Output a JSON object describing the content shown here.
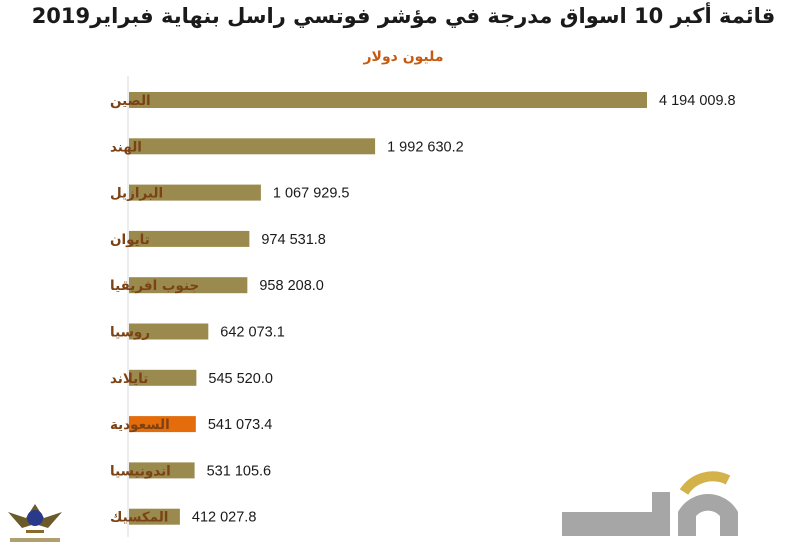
{
  "title": "قائمة أكبر 10 اسواق مدرجة في مؤشر فوتسي راسل بنهاية فبراير2019",
  "subtitle": "مليون دولار",
  "colors": {
    "bar": "#9a8a4e",
    "highlight": "#e46c0a",
    "label": "#7b4215",
    "subtitle": "#c55a11",
    "axis": "#d9d9d9"
  },
  "chart_data": {
    "type": "bar",
    "orientation": "horizontal",
    "title": "قائمة أكبر 10 اسواق مدرجة في مؤشر فوتسي راسل بنهاية فبراير2019",
    "subtitle": "مليون دولار",
    "categories": [
      "الصين",
      "الهند",
      "البرازيل",
      "تايوان",
      "جنوب افريقيا",
      "روسيا",
      "تايلاند",
      "السعودية",
      "اندونيسيا",
      "المكسيك"
    ],
    "values": [
      4194009.8,
      1992630.2,
      1067929.5,
      974531.8,
      958208.0,
      642073.1,
      545520.0,
      541073.4,
      531105.6,
      412027.8
    ],
    "value_labels": [
      "4 194 009.8",
      "1 992 630.2",
      "1 067 929.5",
      "974 531.8",
      "958 208.0",
      "642 073.1",
      "545 520.0",
      "541 073.4",
      "531 105.6",
      "412 027.8"
    ],
    "highlight": "السعودية",
    "grid": false,
    "legend": "none"
  }
}
